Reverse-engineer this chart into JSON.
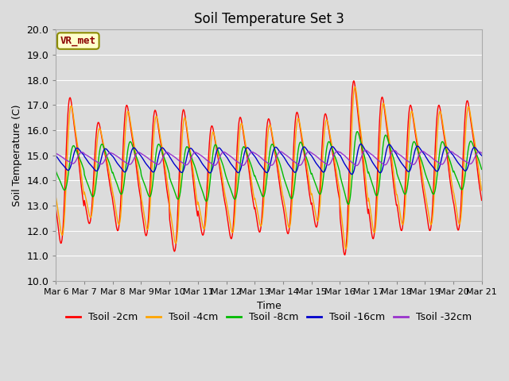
{
  "title": "Soil Temperature Set 3",
  "xlabel": "Time",
  "ylabel": "Soil Temperature (C)",
  "ylim": [
    10.0,
    20.0
  ],
  "yticks": [
    10.0,
    11.0,
    12.0,
    13.0,
    14.0,
    15.0,
    16.0,
    17.0,
    18.0,
    19.0,
    20.0
  ],
  "annotation_text": "VR_met",
  "annotation_color": "#8B0000",
  "annotation_bg": "#FFFFCC",
  "annotation_border": "#8B8B00",
  "series_labels": [
    "Tsoil -2cm",
    "Tsoil -4cm",
    "Tsoil -8cm",
    "Tsoil -16cm",
    "Tsoil -32cm"
  ],
  "series_colors": [
    "#FF0000",
    "#FFA500",
    "#00BB00",
    "#0000CC",
    "#9932CC"
  ],
  "bg_color": "#DCDCDC",
  "grid_color": "#FFFFFF",
  "xtick_labels": [
    "Mar 6",
    "Mar 7",
    "Mar 8",
    "Mar 9",
    "Mar 10",
    "Mar 11",
    "Mar 12",
    "Mar 13",
    "Mar 14",
    "Mar 15",
    "Mar 16",
    "Mar 17",
    "Mar 18",
    "Mar 19",
    "Mar 20",
    "Mar 21"
  ],
  "title_fontsize": 12,
  "axis_fontsize": 9,
  "label_fontsize": 9,
  "legend_fontsize": 9
}
